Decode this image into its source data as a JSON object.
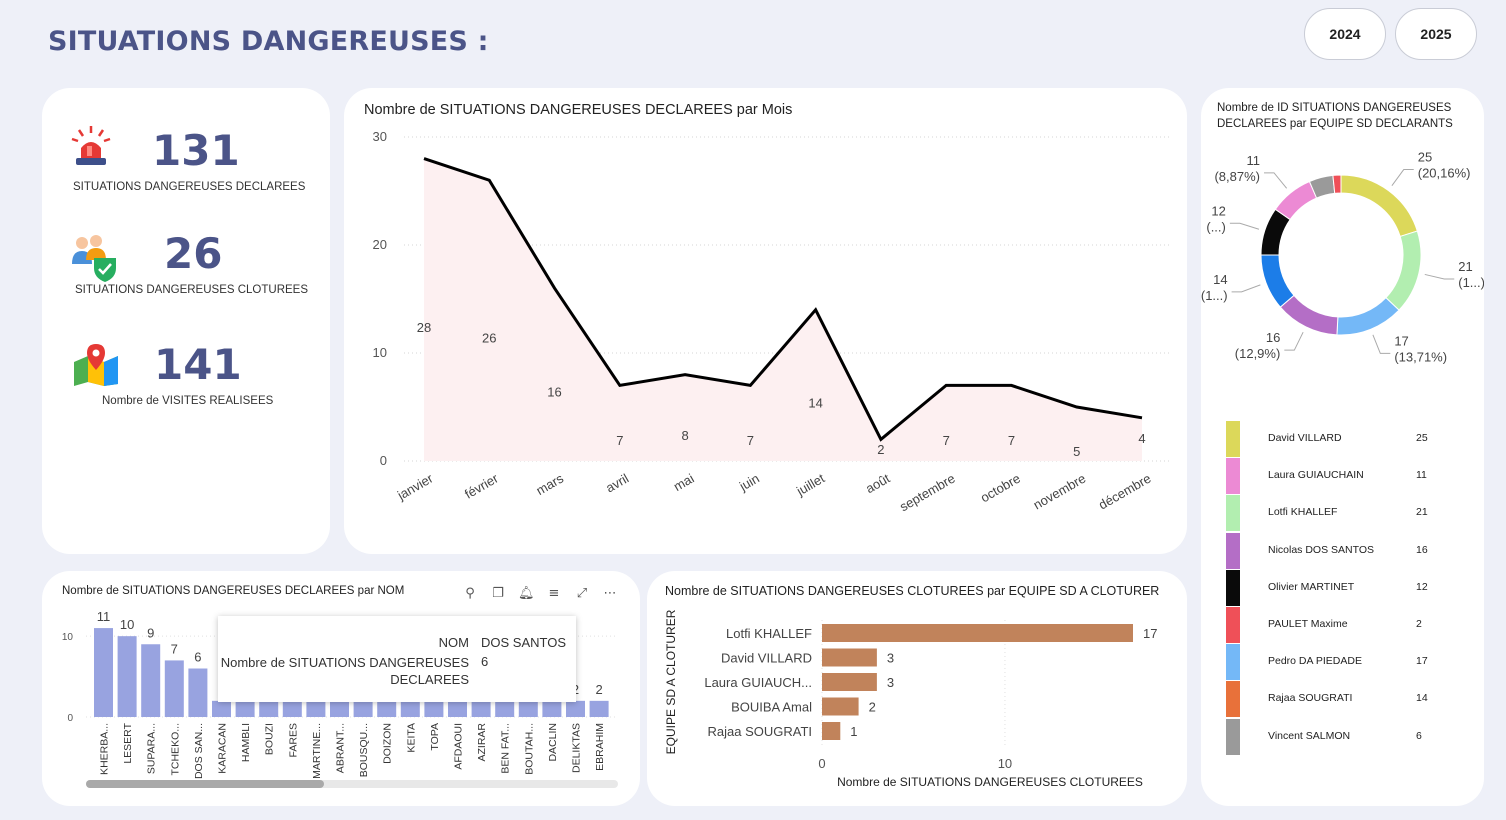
{
  "header": {
    "title": "SITUATIONS DANGEREUSES :"
  },
  "years": [
    "2024",
    "2025"
  ],
  "kpis": [
    {
      "icon": "siren-icon",
      "value": "131",
      "label": "SITUATIONS DANGEREUSES DECLAREES"
    },
    {
      "icon": "team-shield-icon",
      "value": "26",
      "label": "SITUATIONS DANGEREUSES CLOTUREES"
    },
    {
      "icon": "map-pin-icon",
      "value": "141",
      "label": "Nombre de VISITES REALISEES"
    }
  ],
  "colors": {
    "accent": "#4b5488",
    "bar_blue": "#98a3e0",
    "bar_brown": "#c1835b",
    "area_fill": "#fdf0f1"
  },
  "chart_data": [
    {
      "type": "area",
      "title": "Nombre de SITUATIONS DANGEREUSES DECLAREES par Mois",
      "categories": [
        "janvier",
        "février",
        "mars",
        "avril",
        "mai",
        "juin",
        "juillet",
        "août",
        "septembre",
        "octobre",
        "novembre",
        "décembre"
      ],
      "values": [
        28,
        26,
        16,
        7,
        8,
        7,
        14,
        2,
        7,
        7,
        5,
        4
      ],
      "value_labels": [
        "28",
        "26",
        "16",
        "7",
        "8",
        "7",
        "14",
        "2",
        "7",
        "7",
        "5",
        "4"
      ],
      "yticks": [
        "0",
        "10",
        "20",
        "30"
      ],
      "ylim": [
        0,
        30
      ],
      "grid": true
    },
    {
      "type": "pie",
      "title": "Nombre de ID SITUATIONS DANGEREUSES DECLAREES par EQUIPE SD DECLARANTS",
      "slices": [
        {
          "name": "David VILLARD",
          "value": 25,
          "color": "#dcd85a"
        },
        {
          "name": "Lotfi KHALLEF",
          "value": 21,
          "color": "#b2eeb0"
        },
        {
          "name": "Pedro DA PIEDADE",
          "value": 17,
          "color": "#74b8f7"
        },
        {
          "name": "Nicolas DOS SANTOS",
          "value": 16,
          "color": "#b46ec6"
        },
        {
          "name": "Rajaa SOUGRATI",
          "value": 14,
          "color": "#1c7de8"
        },
        {
          "name": "Olivier MARTINET",
          "value": 12,
          "color": "#0a0a0a"
        },
        {
          "name": "Laura GUIAUCHAIN",
          "value": 11,
          "color": "#ec8ad4"
        },
        {
          "name": "Vincent SALMON",
          "value": 6,
          "color": "#9a9a9a"
        },
        {
          "name": "PAULET Maxime",
          "value": 2,
          "color": "#ef5058"
        }
      ],
      "callouts": [
        {
          "value": "25",
          "pct": "(20,16%)"
        },
        {
          "value": "21",
          "pct": "(1...)"
        },
        {
          "value": "17",
          "pct": "(13,71%)"
        },
        {
          "value": "16",
          "pct": "(12,9%)"
        },
        {
          "value": "14",
          "pct": "(1...)"
        },
        {
          "value": "12",
          "pct": "(...)"
        },
        {
          "value": "11",
          "pct": "(8,87%)"
        }
      ],
      "legend": [
        {
          "name": "David VILLARD",
          "value": "25",
          "color": "#dcd85a"
        },
        {
          "name": "Laura GUIAUCHAIN",
          "value": "11",
          "color": "#ec8ad4"
        },
        {
          "name": "Lotfi KHALLEF",
          "value": "21",
          "color": "#b2eeb0"
        },
        {
          "name": "Nicolas DOS SANTOS",
          "value": "16",
          "color": "#b46ec6"
        },
        {
          "name": "Olivier MARTINET",
          "value": "12",
          "color": "#0a0a0a"
        },
        {
          "name": "PAULET Maxime",
          "value": "2",
          "color": "#ef5058"
        },
        {
          "name": "Pedro DA PIEDADE",
          "value": "17",
          "color": "#74b8f7"
        },
        {
          "name": "Rajaa SOUGRATI",
          "value": "14",
          "color": "#e8713a"
        },
        {
          "name": "Vincent SALMON",
          "value": "6",
          "color": "#9a9a9a"
        }
      ]
    },
    {
      "type": "bar",
      "title": "Nombre de SITUATIONS DANGEREUSES DECLAREES par NOM",
      "categories": [
        "KHERBA...",
        "LESERT",
        "SUPARA...",
        "TCHEKO...",
        "DOS SAN...",
        "KARACAN",
        "HAMBLI",
        "BOUZI",
        "FARES",
        "MARTINE...",
        "ABRANT...",
        "BOUSQU...",
        "DOIZON",
        "KEITA",
        "TOPA",
        "AFDAOUI",
        "AZIRAR",
        "BEN FAT...",
        "BOUTAH...",
        "DACLIN",
        "DELIKTAS",
        "EBRAHIM"
      ],
      "values": [
        11,
        10,
        9,
        7,
        6,
        2,
        2,
        2,
        2,
        2,
        2,
        2,
        2,
        2,
        2,
        2,
        2,
        2,
        2,
        2,
        2,
        2
      ],
      "value_labels": [
        "11",
        "10",
        "9",
        "7",
        "6",
        "",
        "",
        "",
        "",
        "",
        "",
        "",
        "",
        "",
        "",
        "",
        "",
        "",
        "",
        "",
        "2",
        "2"
      ],
      "yticks": [
        "0",
        "10"
      ],
      "ylim": [
        0,
        12
      ]
    },
    {
      "type": "bar",
      "orientation": "horizontal",
      "title": "Nombre de SITUATIONS DANGEREUSES CLOTUREES par EQUIPE SD A CLOTURER",
      "categories": [
        "Lotfi KHALLEF",
        "David VILLARD",
        "Laura GUIAUCH...",
        "BOUIBA Amal",
        "Rajaa SOUGRATI"
      ],
      "values": [
        17,
        3,
        3,
        2,
        1
      ],
      "value_labels": [
        "17",
        "3",
        "3",
        "2",
        "1"
      ],
      "xticks": [
        "0",
        "10"
      ],
      "xlim": [
        0,
        17
      ],
      "xlabel": "Nombre de SITUATIONS DANGEREUSES CLOTUREES",
      "ylabel": "EQUIPE SD A CLOTURER"
    }
  ],
  "tooltip": {
    "nom_label": "NOM",
    "nom_value": "DOS SANTOS",
    "measure_label_1": "Nombre de SITUATIONS DANGEREUSES",
    "measure_label_2": "DECLAREES",
    "measure_value": "6"
  },
  "visual_toolbar": [
    "pin-icon",
    "copy-icon",
    "bell-icon",
    "filter-icon",
    "focus-mode-icon",
    "more-options-icon"
  ]
}
